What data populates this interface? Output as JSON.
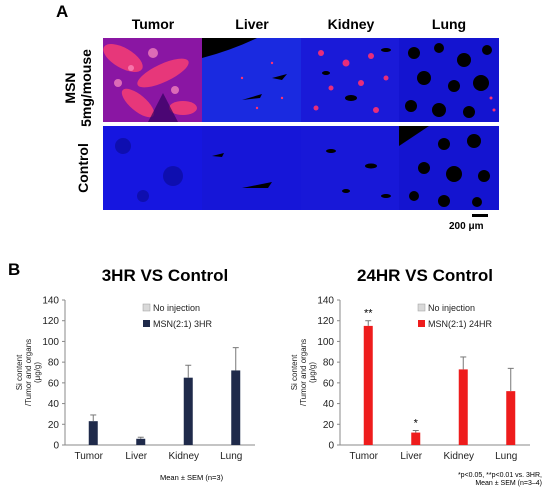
{
  "panel_a": {
    "letter": "A",
    "columns": [
      "Tumor",
      "Liver",
      "Kidney",
      "Lung"
    ],
    "rows": [
      {
        "label_line1": "MSN",
        "label_line2": "5mg/mouse"
      },
      {
        "label_line1": "Control",
        "label_line2": ""
      }
    ],
    "scale_bar_label": "200 μm",
    "colors": {
      "nucleus": "#1010e0",
      "particle": "#ff2060",
      "background": "#000000"
    }
  },
  "panel_b": {
    "letter": "B",
    "footnote_left": "Mean ± SEM (n=3)",
    "footnote_right_line1": "*p<0.05, **p<0.01 vs. 3HR,",
    "footnote_right_line2": "Mean ± SEM (n=3–4)"
  },
  "chart_data": [
    {
      "type": "bar",
      "title": "3HR VS Control",
      "ylabel": [
        "Si content",
        "/Tumor and organs",
        "(μg/g)"
      ],
      "xlabel": "",
      "ylim": [
        0,
        140
      ],
      "yticks": [
        0,
        20,
        40,
        60,
        80,
        100,
        120,
        140
      ],
      "categories": [
        "Tumor",
        "Liver",
        "Kidney",
        "Lung"
      ],
      "series": [
        {
          "name": "No injection",
          "color": "#d9d9d9",
          "values": [
            0,
            0,
            0,
            0
          ],
          "errors": [
            0,
            0,
            0,
            0
          ]
        },
        {
          "name": "MSN(2:1) 3HR",
          "color": "#1f2a4a",
          "values": [
            23,
            6,
            65,
            72
          ],
          "errors": [
            6,
            1.5,
            12,
            22
          ]
        }
      ],
      "significance": [
        "",
        "",
        "",
        ""
      ],
      "legend_position": "top-right",
      "grid": false
    },
    {
      "type": "bar",
      "title": "24HR VS Control",
      "ylabel": [
        "Si content",
        "/Tumor and organs",
        "(μg/g)"
      ],
      "xlabel": "",
      "ylim": [
        0,
        140
      ],
      "yticks": [
        0,
        20,
        40,
        60,
        80,
        100,
        120,
        140
      ],
      "categories": [
        "Tumor",
        "Liver",
        "Kidney",
        "Lung"
      ],
      "series": [
        {
          "name": "No injection",
          "color": "#d9d9d9",
          "values": [
            0,
            0,
            0,
            0
          ],
          "errors": [
            0,
            0,
            0,
            0
          ]
        },
        {
          "name": "MSN(2:1) 24HR",
          "color": "#ee1c1c",
          "values": [
            115,
            12,
            73,
            52
          ],
          "errors": [
            5,
            2,
            12,
            22
          ]
        }
      ],
      "significance": [
        "**",
        "*",
        "",
        ""
      ],
      "legend_position": "top-right",
      "grid": false
    }
  ]
}
